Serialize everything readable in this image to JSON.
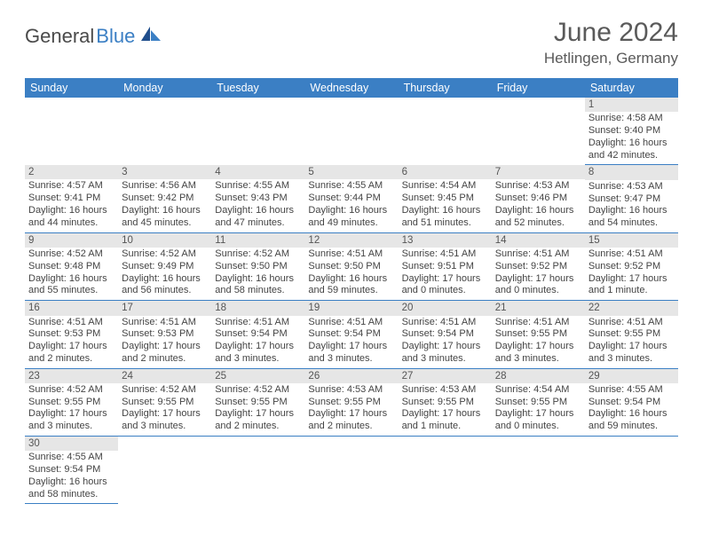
{
  "logo": {
    "text1": "General",
    "text2": "Blue"
  },
  "title": "June 2024",
  "location": "Hetlingen, Germany",
  "colors": {
    "header_bg": "#3b7fc4",
    "header_text": "#ffffff",
    "daynum_bg": "#e6e6e6",
    "row_border": "#3b7fc4",
    "body_bg": "#ffffff",
    "text": "#444444",
    "title_color": "#5a5a5a"
  },
  "layout": {
    "columns": 7,
    "rows": 6,
    "cell_fontsize": 11,
    "header_fontsize": 12.5,
    "month_fontsize": 30,
    "location_fontsize": 17
  },
  "weekdays": [
    "Sunday",
    "Monday",
    "Tuesday",
    "Wednesday",
    "Thursday",
    "Friday",
    "Saturday"
  ],
  "weeks": [
    [
      null,
      null,
      null,
      null,
      null,
      null,
      {
        "n": "1",
        "sr": "4:58 AM",
        "ss": "9:40 PM",
        "dl": "16 hours and 42 minutes."
      }
    ],
    [
      {
        "n": "2",
        "sr": "4:57 AM",
        "ss": "9:41 PM",
        "dl": "16 hours and 44 minutes."
      },
      {
        "n": "3",
        "sr": "4:56 AM",
        "ss": "9:42 PM",
        "dl": "16 hours and 45 minutes."
      },
      {
        "n": "4",
        "sr": "4:55 AM",
        "ss": "9:43 PM",
        "dl": "16 hours and 47 minutes."
      },
      {
        "n": "5",
        "sr": "4:55 AM",
        "ss": "9:44 PM",
        "dl": "16 hours and 49 minutes."
      },
      {
        "n": "6",
        "sr": "4:54 AM",
        "ss": "9:45 PM",
        "dl": "16 hours and 51 minutes."
      },
      {
        "n": "7",
        "sr": "4:53 AM",
        "ss": "9:46 PM",
        "dl": "16 hours and 52 minutes."
      },
      {
        "n": "8",
        "sr": "4:53 AM",
        "ss": "9:47 PM",
        "dl": "16 hours and 54 minutes."
      }
    ],
    [
      {
        "n": "9",
        "sr": "4:52 AM",
        "ss": "9:48 PM",
        "dl": "16 hours and 55 minutes."
      },
      {
        "n": "10",
        "sr": "4:52 AM",
        "ss": "9:49 PM",
        "dl": "16 hours and 56 minutes."
      },
      {
        "n": "11",
        "sr": "4:52 AM",
        "ss": "9:50 PM",
        "dl": "16 hours and 58 minutes."
      },
      {
        "n": "12",
        "sr": "4:51 AM",
        "ss": "9:50 PM",
        "dl": "16 hours and 59 minutes."
      },
      {
        "n": "13",
        "sr": "4:51 AM",
        "ss": "9:51 PM",
        "dl": "17 hours and 0 minutes."
      },
      {
        "n": "14",
        "sr": "4:51 AM",
        "ss": "9:52 PM",
        "dl": "17 hours and 0 minutes."
      },
      {
        "n": "15",
        "sr": "4:51 AM",
        "ss": "9:52 PM",
        "dl": "17 hours and 1 minute."
      }
    ],
    [
      {
        "n": "16",
        "sr": "4:51 AM",
        "ss": "9:53 PM",
        "dl": "17 hours and 2 minutes."
      },
      {
        "n": "17",
        "sr": "4:51 AM",
        "ss": "9:53 PM",
        "dl": "17 hours and 2 minutes."
      },
      {
        "n": "18",
        "sr": "4:51 AM",
        "ss": "9:54 PM",
        "dl": "17 hours and 3 minutes."
      },
      {
        "n": "19",
        "sr": "4:51 AM",
        "ss": "9:54 PM",
        "dl": "17 hours and 3 minutes."
      },
      {
        "n": "20",
        "sr": "4:51 AM",
        "ss": "9:54 PM",
        "dl": "17 hours and 3 minutes."
      },
      {
        "n": "21",
        "sr": "4:51 AM",
        "ss": "9:55 PM",
        "dl": "17 hours and 3 minutes."
      },
      {
        "n": "22",
        "sr": "4:51 AM",
        "ss": "9:55 PM",
        "dl": "17 hours and 3 minutes."
      }
    ],
    [
      {
        "n": "23",
        "sr": "4:52 AM",
        "ss": "9:55 PM",
        "dl": "17 hours and 3 minutes."
      },
      {
        "n": "24",
        "sr": "4:52 AM",
        "ss": "9:55 PM",
        "dl": "17 hours and 3 minutes."
      },
      {
        "n": "25",
        "sr": "4:52 AM",
        "ss": "9:55 PM",
        "dl": "17 hours and 2 minutes."
      },
      {
        "n": "26",
        "sr": "4:53 AM",
        "ss": "9:55 PM",
        "dl": "17 hours and 2 minutes."
      },
      {
        "n": "27",
        "sr": "4:53 AM",
        "ss": "9:55 PM",
        "dl": "17 hours and 1 minute."
      },
      {
        "n": "28",
        "sr": "4:54 AM",
        "ss": "9:55 PM",
        "dl": "17 hours and 0 minutes."
      },
      {
        "n": "29",
        "sr": "4:55 AM",
        "ss": "9:54 PM",
        "dl": "16 hours and 59 minutes."
      }
    ],
    [
      {
        "n": "30",
        "sr": "4:55 AM",
        "ss": "9:54 PM",
        "dl": "16 hours and 58 minutes."
      },
      null,
      null,
      null,
      null,
      null,
      null
    ]
  ],
  "labels": {
    "sunrise": "Sunrise:",
    "sunset": "Sunset:",
    "daylight": "Daylight:"
  }
}
